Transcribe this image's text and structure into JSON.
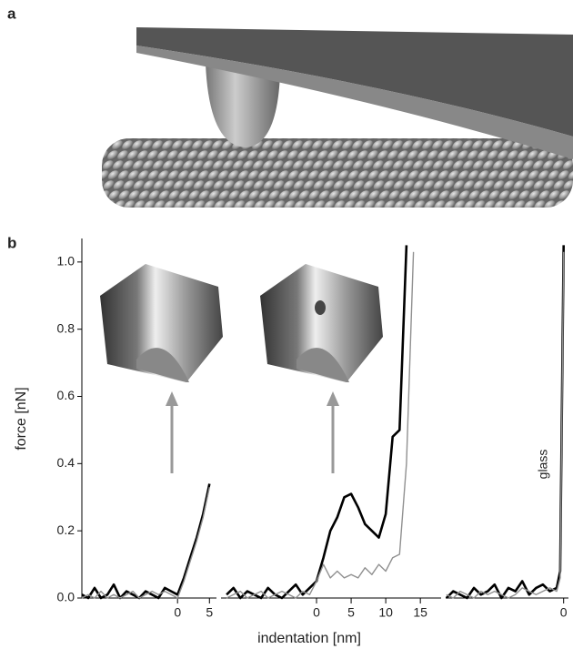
{
  "panel_labels": [
    "a",
    "b"
  ],
  "chart_data": [
    {
      "type": "line",
      "ylabel": "force [nN]",
      "xlabel": "indentation [nm]",
      "ylim": [
        0,
        1.07
      ],
      "yticks": [
        {
          "value": 0,
          "label": "0.0"
        },
        0.2,
        0.4,
        0.6,
        0.8,
        {
          "value": 1,
          "label": "1.0"
        }
      ],
      "xlim": [
        -15,
        6.1
      ],
      "xticks": [
        0,
        5
      ],
      "x": [
        -15,
        -14,
        -13,
        -12,
        -11,
        -10,
        -9,
        -8,
        -7,
        -6,
        -5,
        -4,
        -3,
        -2,
        -1,
        0,
        1,
        2,
        3,
        4,
        5
      ],
      "series": [
        {
          "color": "#000000",
          "values": [
            0.01,
            0.0,
            0.03,
            0.0,
            0.01,
            0.04,
            0.0,
            0.02,
            0.01,
            0.0,
            0.02,
            0.01,
            0.0,
            0.03,
            0.02,
            0.01,
            0.06,
            0.12,
            0.18,
            0.25,
            0.34
          ]
        },
        {
          "color": "#909090",
          "values": [
            0.0,
            0.01,
            0.0,
            0.02,
            0.0,
            0.01,
            0.0,
            0.01,
            0.02,
            0.0,
            0.01,
            0.02,
            0.01,
            0.02,
            0.01,
            0.0,
            0.05,
            0.11,
            0.17,
            0.24,
            0.33
          ]
        }
      ]
    },
    {
      "type": "line",
      "ylim": [
        0,
        1.07
      ],
      "xlim": [
        -13.8,
        18
      ],
      "xticks": [
        0,
        5,
        10,
        15
      ],
      "x": [
        -13,
        -12,
        -11,
        -10,
        -9,
        -8,
        -7,
        -6,
        -5,
        -4,
        -3,
        -2,
        -1,
        0,
        1,
        2,
        3,
        4,
        5,
        6,
        7,
        8,
        9,
        10,
        11,
        12,
        13,
        14
      ],
      "series": [
        {
          "color": "#000000",
          "values": [
            0.01,
            0.03,
            0.0,
            0.02,
            0.01,
            0.0,
            0.03,
            0.01,
            0.0,
            0.02,
            0.04,
            0.01,
            0.03,
            0.05,
            0.12,
            0.2,
            0.24,
            0.3,
            0.31,
            0.27,
            0.22,
            0.2,
            0.18,
            0.25,
            0.48,
            0.5,
            1.05,
            null
          ]
        },
        {
          "color": "#909090",
          "values": [
            0.0,
            0.01,
            0.02,
            0.0,
            0.01,
            0.02,
            0.0,
            0.01,
            0.02,
            0.01,
            0.0,
            0.02,
            0.01,
            0.05,
            0.1,
            0.06,
            0.08,
            0.06,
            0.07,
            0.06,
            0.09,
            0.07,
            0.1,
            0.08,
            0.12,
            0.13,
            0.4,
            1.03
          ]
        }
      ]
    },
    {
      "type": "line",
      "ylim": [
        0,
        1.07
      ],
      "annotation": "glass",
      "xlim": [
        -17.1,
        0.7
      ],
      "xticks": [
        0
      ],
      "x": [
        -17,
        -16,
        -15,
        -14,
        -13,
        -12,
        -11,
        -10,
        -9,
        -8,
        -7,
        -6,
        -5,
        -4,
        -3,
        -2,
        -1,
        -0.5,
        0
      ],
      "series": [
        {
          "color": "#000000",
          "values": [
            0.0,
            0.02,
            0.01,
            0.0,
            0.03,
            0.01,
            0.02,
            0.04,
            0.0,
            0.03,
            0.02,
            0.05,
            0.01,
            0.03,
            0.04,
            0.02,
            0.03,
            0.08,
            1.05
          ]
        },
        {
          "color": "#909090",
          "values": [
            0.01,
            0.0,
            0.02,
            0.01,
            0.0,
            0.02,
            0.01,
            0.02,
            0.01,
            0.0,
            0.01,
            0.03,
            0.02,
            0.01,
            0.02,
            0.03,
            0.02,
            0.06,
            1.03
          ]
        }
      ]
    }
  ]
}
